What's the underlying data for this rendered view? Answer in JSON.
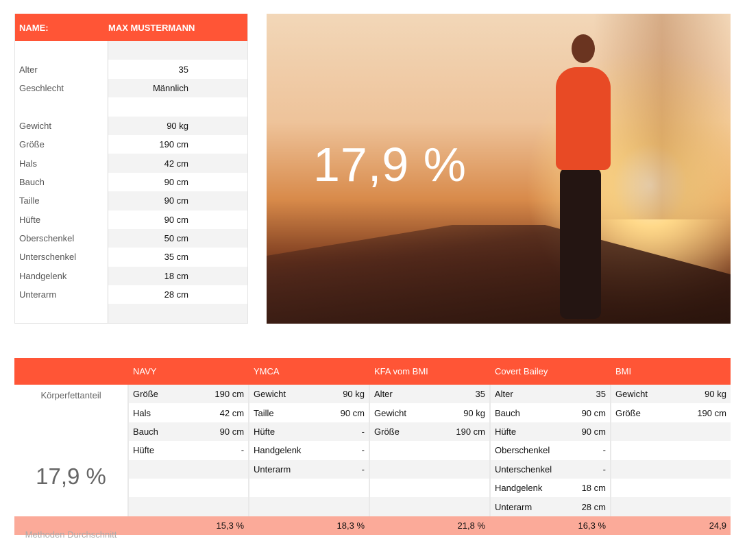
{
  "profile": {
    "name_label": "NAME:",
    "name_value": "MAX MUSTERMANN",
    "rows": [
      {
        "label": "",
        "value": ""
      },
      {
        "label": "Alter",
        "value": "35"
      },
      {
        "label": "Geschlecht",
        "value": "Männlich"
      },
      {
        "label": "",
        "value": ""
      },
      {
        "label": "Gewicht",
        "value": "90 kg"
      },
      {
        "label": "Größe",
        "value": "190 cm"
      },
      {
        "label": "Hals",
        "value": "42 cm"
      },
      {
        "label": "Bauch",
        "value": "90 cm"
      },
      {
        "label": "Taille",
        "value": "90 cm"
      },
      {
        "label": "Hüfte",
        "value": "90 cm"
      },
      {
        "label": "Oberschenkel",
        "value": "50 cm"
      },
      {
        "label": "Unterschenkel",
        "value": "35 cm"
      },
      {
        "label": "Handgelenk",
        "value": "18 cm"
      },
      {
        "label": "Unterarm",
        "value": "28 cm"
      },
      {
        "label": "",
        "value": ""
      }
    ]
  },
  "hero": {
    "percentage": "17,9 %"
  },
  "methods": {
    "side_title": "Körperfettanteil",
    "side_value": "17,9 %",
    "side_footer": "Methoden Durchschnitt",
    "columns": [
      {
        "name": "NAVY",
        "rows": [
          [
            "Größe",
            "190 cm"
          ],
          [
            "Hals",
            "42 cm"
          ],
          [
            "Bauch",
            "90 cm"
          ],
          [
            "Hüfte",
            "-"
          ],
          [
            "",
            ""
          ],
          [
            "",
            ""
          ],
          [
            "",
            ""
          ]
        ],
        "result": "15,3 %"
      },
      {
        "name": "YMCA",
        "rows": [
          [
            "Gewicht",
            "90 kg"
          ],
          [
            "Taille",
            "90 cm"
          ],
          [
            "Hüfte",
            "-"
          ],
          [
            "Handgelenk",
            "-"
          ],
          [
            "Unterarm",
            "-"
          ],
          [
            "",
            ""
          ],
          [
            "",
            ""
          ]
        ],
        "result": "18,3 %"
      },
      {
        "name": "KFA vom BMI",
        "rows": [
          [
            "Alter",
            "35"
          ],
          [
            "Gewicht",
            "90 kg"
          ],
          [
            "Größe",
            "190 cm"
          ],
          [
            "",
            ""
          ],
          [
            "",
            ""
          ],
          [
            "",
            ""
          ],
          [
            "",
            ""
          ]
        ],
        "result": "21,8 %"
      },
      {
        "name": "Covert Bailey",
        "rows": [
          [
            "Alter",
            "35"
          ],
          [
            "Bauch",
            "90 cm"
          ],
          [
            "Hüfte",
            "90 cm"
          ],
          [
            "Oberschenkel",
            "-"
          ],
          [
            "Unterschenkel",
            "-"
          ],
          [
            "Handgelenk",
            "18 cm"
          ],
          [
            "Unterarm",
            "28 cm"
          ]
        ],
        "result": "16,3 %"
      },
      {
        "name": "BMI",
        "rows": [
          [
            "Gewicht",
            "90 kg"
          ],
          [
            "Größe",
            "190 cm"
          ],
          [
            "",
            ""
          ],
          [
            "",
            ""
          ],
          [
            "",
            ""
          ],
          [
            "",
            ""
          ],
          [
            "",
            ""
          ]
        ],
        "result": "24,9"
      }
    ]
  },
  "colors": {
    "header": "#ff5536",
    "footer": "#fbaa99"
  }
}
